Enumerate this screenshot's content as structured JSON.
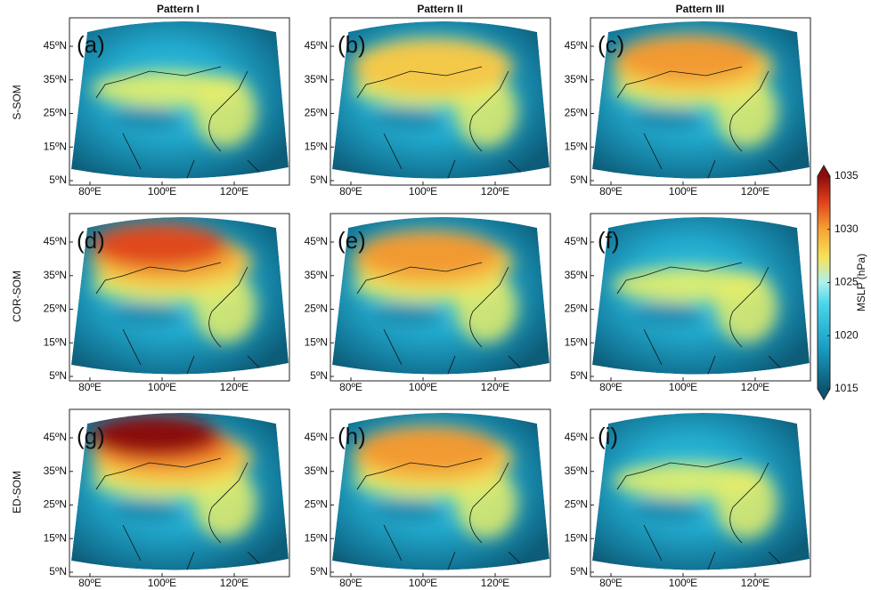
{
  "columns": [
    "Pattern I",
    "Pattern II",
    "Pattern III"
  ],
  "rows": [
    "S-SOM",
    "COR-SOM",
    "ED-SOM"
  ],
  "panels": [
    "(a)",
    "(b)",
    "(c)",
    "(d)",
    "(e)",
    "(f)",
    "(g)",
    "(h)",
    "(i)"
  ],
  "lat_ticks": [
    {
      "value": 45,
      "label": "45ºN"
    },
    {
      "value": 35,
      "label": "35ºN"
    },
    {
      "value": 25,
      "label": "25ºN"
    },
    {
      "value": 15,
      "label": "15ºN"
    },
    {
      "value": 5,
      "label": "5ºN"
    }
  ],
  "lon_ticks": [
    {
      "value": 80,
      "label": "80ºE"
    },
    {
      "value": 100,
      "label": "100ºE"
    },
    {
      "value": 120,
      "label": "120ºE"
    }
  ],
  "colorbar": {
    "label": "MSLP (hPa)",
    "range": [
      1015,
      1035
    ],
    "ticks": [
      1015,
      1020,
      1025,
      1030,
      1035
    ]
  }
}
